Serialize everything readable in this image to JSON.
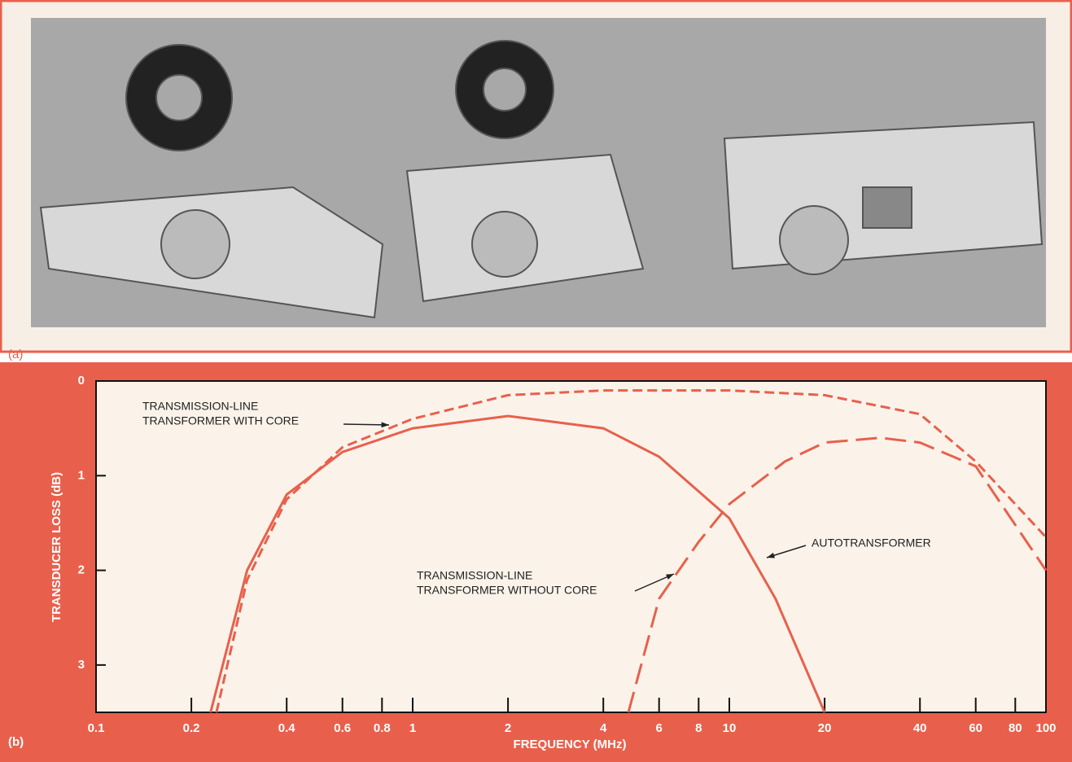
{
  "panel_labels": [
    "(a)",
    "(b)"
  ],
  "chart_data": {
    "type": "line",
    "xlabel": "FREQUENCY (MHz)",
    "ylabel": "TRANSDUCER LOSS (dB)",
    "xscale": "log",
    "y_inverted": true,
    "xlim": [
      0.1,
      100
    ],
    "ylim": [
      0,
      3.5
    ],
    "xticks": [
      0.1,
      0.2,
      0.4,
      0.6,
      0.8,
      1,
      2,
      4,
      6,
      8,
      10,
      20,
      40,
      60,
      80,
      100
    ],
    "yticks": [
      0,
      1,
      2,
      3
    ],
    "annotations": [
      [
        "TRANSMISSION-LINE",
        "TRANSFORMER WITH CORE"
      ],
      [
        "AUTOTRANSFORMER"
      ],
      [
        "TRANSMISSION-LINE",
        "TRANSFORMER WITHOUT CORE"
      ]
    ],
    "series": [
      {
        "color": "#e8604c",
        "dash": "solid",
        "x": [
          0.23,
          0.3,
          0.4,
          0.6,
          1,
          2,
          4,
          6,
          10,
          14,
          20
        ],
        "values": [
          3.5,
          2.0,
          1.2,
          0.75,
          0.5,
          0.37,
          0.5,
          0.8,
          1.45,
          2.3,
          3.5
        ]
      },
      {
        "color": "#e8604c",
        "dash": "short",
        "x": [
          0.24,
          0.3,
          0.4,
          0.6,
          1,
          2,
          4,
          10,
          20,
          40,
          60,
          100
        ],
        "values": [
          3.5,
          2.1,
          1.25,
          0.7,
          0.4,
          0.15,
          0.1,
          0.1,
          0.15,
          0.35,
          0.85,
          1.65
        ]
      },
      {
        "color": "#e8604c",
        "dash": "long",
        "x": [
          4.8,
          6,
          8,
          10,
          15,
          20,
          30,
          40,
          60,
          100
        ],
        "values": [
          3.5,
          2.3,
          1.7,
          1.3,
          0.85,
          0.65,
          0.6,
          0.65,
          0.9,
          2.0
        ]
      }
    ]
  }
}
